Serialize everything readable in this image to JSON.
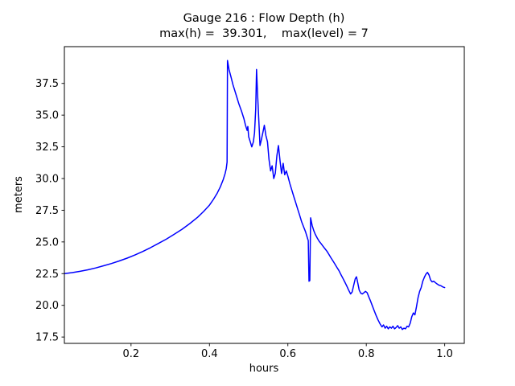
{
  "chart_data": {
    "type": "line",
    "title": "Gauge 216 : Flow Depth (h)",
    "subtitle": "max(h) =  39.301,    max(level) = 7",
    "xlabel": "hours",
    "ylabel": "meters",
    "gauge_number": 216,
    "max_h": 39.301,
    "max_level": 7,
    "line_color": "#0000ff",
    "axis_color": "#000000",
    "grid": false,
    "legend": null,
    "xlim": [
      0.03,
      1.05
    ],
    "ylim": [
      17.0,
      40.4
    ],
    "xticks": [
      0.2,
      0.4,
      0.6,
      0.8,
      1.0
    ],
    "xtick_labels": [
      "0.2",
      "0.4",
      "0.6",
      "0.8",
      "1.0"
    ],
    "yticks": [
      17.5,
      20.0,
      22.5,
      25.0,
      27.5,
      30.0,
      32.5,
      35.0,
      37.5
    ],
    "ytick_labels": [
      "17.5",
      "20.0",
      "22.5",
      "25.0",
      "27.5",
      "30.0",
      "32.5",
      "35.0",
      "37.5"
    ],
    "points": [
      [
        0.03,
        22.5
      ],
      [
        0.05,
        22.58
      ],
      [
        0.07,
        22.68
      ],
      [
        0.09,
        22.8
      ],
      [
        0.11,
        22.95
      ],
      [
        0.13,
        23.12
      ],
      [
        0.15,
        23.3
      ],
      [
        0.17,
        23.5
      ],
      [
        0.19,
        23.72
      ],
      [
        0.21,
        23.97
      ],
      [
        0.23,
        24.25
      ],
      [
        0.25,
        24.55
      ],
      [
        0.27,
        24.88
      ],
      [
        0.29,
        25.22
      ],
      [
        0.31,
        25.6
      ],
      [
        0.33,
        26.0
      ],
      [
        0.35,
        26.45
      ],
      [
        0.37,
        26.95
      ],
      [
        0.385,
        27.4
      ],
      [
        0.4,
        27.9
      ],
      [
        0.41,
        28.35
      ],
      [
        0.42,
        28.85
      ],
      [
        0.428,
        29.35
      ],
      [
        0.435,
        29.9
      ],
      [
        0.44,
        30.4
      ],
      [
        0.443,
        30.8
      ],
      [
        0.445,
        31.3
      ],
      [
        0.446,
        39.3
      ],
      [
        0.45,
        38.6
      ],
      [
        0.455,
        38.0
      ],
      [
        0.46,
        37.4
      ],
      [
        0.468,
        36.6
      ],
      [
        0.475,
        35.9
      ],
      [
        0.482,
        35.3
      ],
      [
        0.488,
        34.7
      ],
      [
        0.492,
        34.2
      ],
      [
        0.496,
        33.8
      ],
      [
        0.498,
        34.1
      ],
      [
        0.5,
        33.3
      ],
      [
        0.504,
        32.9
      ],
      [
        0.508,
        32.5
      ],
      [
        0.512,
        32.9
      ],
      [
        0.515,
        33.6
      ],
      [
        0.518,
        35.5
      ],
      [
        0.52,
        38.6
      ],
      [
        0.523,
        36.5
      ],
      [
        0.526,
        34.5
      ],
      [
        0.529,
        32.6
      ],
      [
        0.532,
        33.0
      ],
      [
        0.536,
        33.6
      ],
      [
        0.54,
        34.2
      ],
      [
        0.544,
        33.4
      ],
      [
        0.548,
        32.9
      ],
      [
        0.552,
        31.5
      ],
      [
        0.556,
        30.6
      ],
      [
        0.56,
        31.0
      ],
      [
        0.564,
        30.0
      ],
      [
        0.568,
        30.4
      ],
      [
        0.572,
        31.8
      ],
      [
        0.576,
        32.6
      ],
      [
        0.58,
        31.4
      ],
      [
        0.584,
        30.4
      ],
      [
        0.588,
        31.2
      ],
      [
        0.592,
        30.3
      ],
      [
        0.596,
        30.6
      ],
      [
        0.6,
        30.2
      ],
      [
        0.605,
        29.6
      ],
      [
        0.61,
        29.1
      ],
      [
        0.615,
        28.6
      ],
      [
        0.62,
        28.1
      ],
      [
        0.625,
        27.6
      ],
      [
        0.63,
        27.1
      ],
      [
        0.635,
        26.6
      ],
      [
        0.64,
        26.2
      ],
      [
        0.645,
        25.8
      ],
      [
        0.65,
        25.3
      ],
      [
        0.652,
        25.1
      ],
      [
        0.654,
        21.9
      ],
      [
        0.656,
        21.95
      ],
      [
        0.658,
        26.9
      ],
      [
        0.662,
        26.3
      ],
      [
        0.666,
        25.9
      ],
      [
        0.67,
        25.6
      ],
      [
        0.675,
        25.3
      ],
      [
        0.68,
        25.05
      ],
      [
        0.685,
        24.85
      ],
      [
        0.69,
        24.65
      ],
      [
        0.695,
        24.45
      ],
      [
        0.7,
        24.25
      ],
      [
        0.705,
        24.0
      ],
      [
        0.71,
        23.75
      ],
      [
        0.715,
        23.5
      ],
      [
        0.72,
        23.25
      ],
      [
        0.725,
        23.0
      ],
      [
        0.73,
        22.75
      ],
      [
        0.735,
        22.45
      ],
      [
        0.74,
        22.15
      ],
      [
        0.745,
        21.85
      ],
      [
        0.75,
        21.55
      ],
      [
        0.755,
        21.2
      ],
      [
        0.76,
        20.9
      ],
      [
        0.764,
        21.05
      ],
      [
        0.768,
        21.6
      ],
      [
        0.772,
        22.1
      ],
      [
        0.775,
        22.25
      ],
      [
        0.778,
        21.8
      ],
      [
        0.782,
        21.2
      ],
      [
        0.786,
        20.95
      ],
      [
        0.79,
        20.9
      ],
      [
        0.794,
        21.0
      ],
      [
        0.798,
        21.1
      ],
      [
        0.802,
        21.0
      ],
      [
        0.806,
        20.7
      ],
      [
        0.81,
        20.4
      ],
      [
        0.815,
        20.0
      ],
      [
        0.82,
        19.6
      ],
      [
        0.825,
        19.2
      ],
      [
        0.83,
        18.85
      ],
      [
        0.835,
        18.55
      ],
      [
        0.84,
        18.3
      ],
      [
        0.844,
        18.45
      ],
      [
        0.848,
        18.2
      ],
      [
        0.852,
        18.35
      ],
      [
        0.856,
        18.15
      ],
      [
        0.86,
        18.3
      ],
      [
        0.864,
        18.2
      ],
      [
        0.868,
        18.35
      ],
      [
        0.872,
        18.15
      ],
      [
        0.876,
        18.25
      ],
      [
        0.88,
        18.4
      ],
      [
        0.884,
        18.2
      ],
      [
        0.888,
        18.3
      ],
      [
        0.892,
        18.1
      ],
      [
        0.896,
        18.2
      ],
      [
        0.9,
        18.15
      ],
      [
        0.904,
        18.35
      ],
      [
        0.908,
        18.3
      ],
      [
        0.912,
        18.6
      ],
      [
        0.916,
        19.1
      ],
      [
        0.92,
        19.4
      ],
      [
        0.924,
        19.25
      ],
      [
        0.928,
        19.9
      ],
      [
        0.932,
        20.6
      ],
      [
        0.936,
        21.1
      ],
      [
        0.94,
        21.4
      ],
      [
        0.944,
        21.9
      ],
      [
        0.948,
        22.2
      ],
      [
        0.952,
        22.45
      ],
      [
        0.956,
        22.6
      ],
      [
        0.96,
        22.4
      ],
      [
        0.964,
        22.0
      ],
      [
        0.968,
        21.85
      ],
      [
        0.972,
        21.9
      ],
      [
        0.976,
        21.8
      ],
      [
        0.98,
        21.7
      ],
      [
        0.985,
        21.6
      ],
      [
        0.99,
        21.55
      ],
      [
        0.995,
        21.45
      ],
      [
        1.0,
        21.4
      ]
    ]
  }
}
